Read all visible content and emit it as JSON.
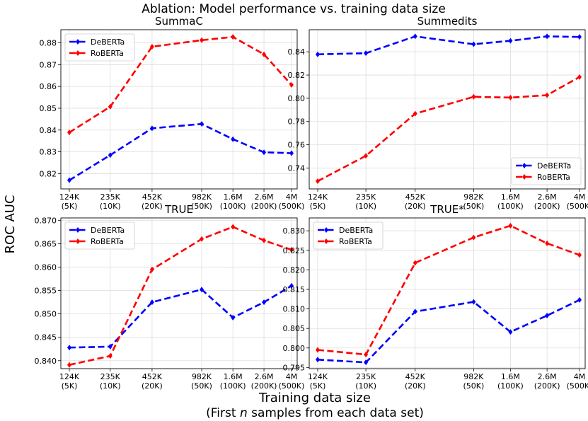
{
  "figure": {
    "title": "Ablation: Model performance vs. training data size",
    "ylabel": "ROC AUC",
    "xlabel_line1": "Training data size",
    "xlabel_line2_pre": "(First ",
    "xlabel_line2_var": "n",
    "xlabel_line2_post": " samples from each data set)"
  },
  "colors": {
    "DeBERTa": "#0000ff",
    "RoBERTa": "#ff0000"
  },
  "chart_data": [
    {
      "type": "line",
      "title": "SummaC",
      "categories": [
        "124K\n(5K)",
        "235K\n(10K)",
        "452K\n(20K)",
        "982K\n(50K)",
        "1.6M\n(100K)",
        "2.6M\n(200K)",
        "4M\n(500K)"
      ],
      "x": [
        124,
        235,
        452,
        982,
        1600,
        2600,
        4000
      ],
      "x_scale": "log",
      "series": [
        {
          "name": "DeBERTa",
          "values": [
            0.817,
            0.8285,
            0.8408,
            0.8428,
            0.8358,
            0.8298,
            0.8294
          ]
        },
        {
          "name": "RoBERTa",
          "values": [
            0.8389,
            0.8507,
            0.8782,
            0.8812,
            0.8827,
            0.8747,
            0.8607
          ]
        }
      ],
      "yticks": [
        0.82,
        0.83,
        0.84,
        0.85,
        0.86,
        0.87,
        0.88
      ],
      "ylim": [
        0.813,
        0.886
      ],
      "ytick_decimals": 2,
      "legend": "upper-left",
      "grid": true
    },
    {
      "type": "line",
      "title": "Summedits",
      "categories": [
        "124K\n(5K)",
        "235K\n(10K)",
        "452K\n(20K)",
        "982K\n(50K)",
        "1.6M\n(100K)",
        "2.6M\n(200K)",
        "4M\n(500K)"
      ],
      "x": [
        124,
        235,
        452,
        982,
        1600,
        2600,
        4000
      ],
      "x_scale": "log",
      "series": [
        {
          "name": "DeBERTa",
          "values": [
            0.8378,
            0.8388,
            0.8533,
            0.8465,
            0.8495,
            0.8533,
            0.8528
          ]
        },
        {
          "name": "RoBERTa",
          "values": [
            0.7287,
            0.7505,
            0.7868,
            0.8013,
            0.8006,
            0.8027,
            0.8183
          ]
        }
      ],
      "yticks": [
        0.74,
        0.76,
        0.78,
        0.8,
        0.82,
        0.84
      ],
      "ylim": [
        0.722,
        0.859
      ],
      "ytick_decimals": 2,
      "legend": "lower-right",
      "grid": true
    },
    {
      "type": "line",
      "title": "TRUE",
      "categories": [
        "124K\n(5K)",
        "235K\n(10K)",
        "452K\n(20K)",
        "982K\n(50K)",
        "1.6M\n(100K)",
        "2.6M\n(200K)",
        "4M\n(500K)"
      ],
      "x": [
        124,
        235,
        452,
        982,
        1600,
        2600,
        4000
      ],
      "x_scale": "log",
      "series": [
        {
          "name": "DeBERTa",
          "values": [
            0.8428,
            0.843,
            0.8525,
            0.8552,
            0.8492,
            0.8525,
            0.856
          ]
        },
        {
          "name": "RoBERTa",
          "values": [
            0.8391,
            0.841,
            0.8595,
            0.866,
            0.8686,
            0.8657,
            0.8637
          ]
        }
      ],
      "yticks": [
        0.84,
        0.845,
        0.85,
        0.855,
        0.86,
        0.865,
        0.87
      ],
      "ylim": [
        0.8383,
        0.8705
      ],
      "ytick_decimals": 3,
      "legend": "upper-left",
      "grid": true
    },
    {
      "type": "line",
      "title": "TRUE*",
      "categories": [
        "124K\n(5K)",
        "235K\n(10K)",
        "452K\n(20K)",
        "982K\n(50K)",
        "1.6M\n(100K)",
        "2.6M\n(200K)",
        "4M\n(500K)"
      ],
      "x": [
        124,
        235,
        452,
        982,
        1600,
        2600,
        4000
      ],
      "x_scale": "log",
      "series": [
        {
          "name": "DeBERTa",
          "values": [
            0.797,
            0.7963,
            0.8093,
            0.8118,
            0.8041,
            0.8083,
            0.8123
          ]
        },
        {
          "name": "RoBERTa",
          "values": [
            0.7995,
            0.7983,
            0.8218,
            0.8283,
            0.8313,
            0.8268,
            0.8238
          ]
        }
      ],
      "yticks": [
        0.795,
        0.8,
        0.805,
        0.81,
        0.815,
        0.82,
        0.825,
        0.83
      ],
      "ylim": [
        0.7947,
        0.8333
      ],
      "ytick_decimals": 3,
      "legend": "upper-left",
      "grid": true
    }
  ]
}
